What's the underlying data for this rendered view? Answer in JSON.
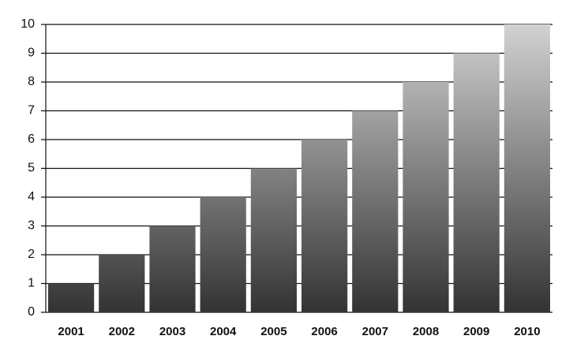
{
  "chart_data": {
    "type": "bar",
    "categories": [
      "2001",
      "2002",
      "2003",
      "2004",
      "2005",
      "2006",
      "2007",
      "2008",
      "2009",
      "2010"
    ],
    "values": [
      1,
      2,
      3,
      4,
      5,
      6,
      7,
      8,
      9,
      10
    ],
    "gradient": [
      "#d2d2d2",
      "#333333"
    ],
    "ylim": [
      0,
      10
    ],
    "yticks": [
      0,
      1,
      2,
      3,
      4,
      5,
      6,
      7,
      8,
      9,
      10
    ],
    "grid": true
  }
}
